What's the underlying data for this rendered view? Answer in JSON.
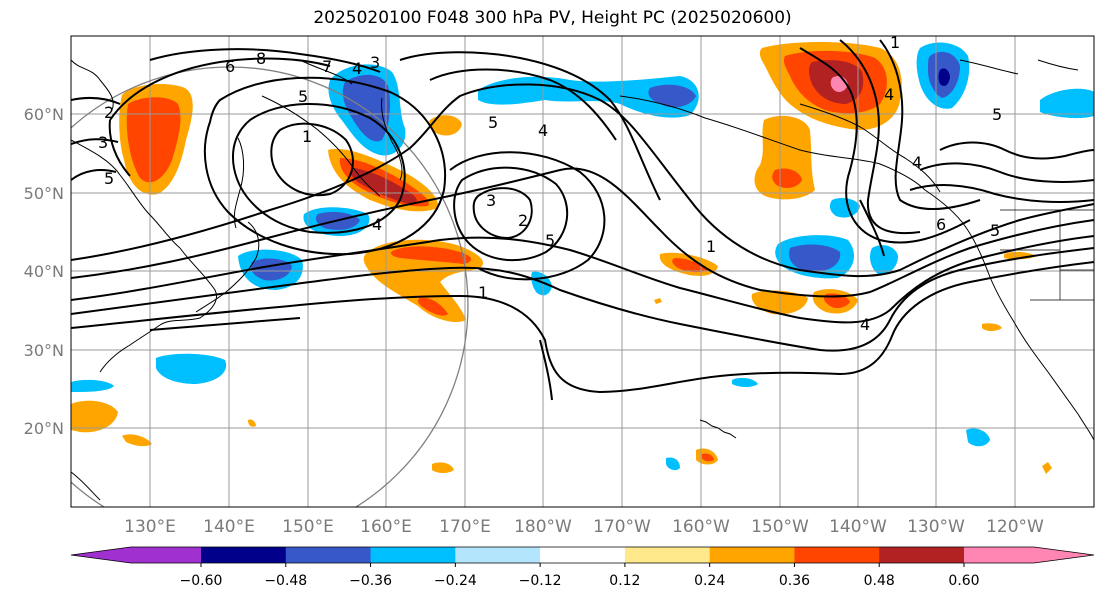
{
  "title": "2025020100 F048 300 hPa PV, Height PC (2025020600)",
  "lat_labels": [
    "60°N",
    "50°N",
    "40°N",
    "30°N",
    "20°N"
  ],
  "lon_labels": [
    "130°E",
    "140°E",
    "150°E",
    "160°E",
    "170°E",
    "180°W",
    "170°W",
    "160°W",
    "150°W",
    "140°W",
    "130°W",
    "120°W"
  ],
  "contour_labels": [
    "6",
    "8",
    "7",
    "4",
    "3",
    "5",
    "2",
    "3",
    "5",
    "1",
    "4",
    "5",
    "4",
    "3",
    "2",
    "5",
    "1",
    "1",
    "4",
    "6",
    "5",
    "5",
    "4",
    "1",
    "4"
  ],
  "colorbar": {
    "ticks": [
      "−0.60",
      "−0.48",
      "−0.36",
      "−0.24",
      "−0.12",
      "0.12",
      "0.24",
      "0.36",
      "0.48",
      "0.60"
    ],
    "colors": [
      "#a030d0",
      "#00008b",
      "#3758c8",
      "#00bfff",
      "#b3e5fc",
      "#ffffff",
      "#ffe98a",
      "#ffa500",
      "#ff4500",
      "#b22222",
      "#ff85b3"
    ]
  },
  "colors": {
    "neg_strong": "#3758c8",
    "neg_mid": "#00bfff",
    "neg_weak": "#b3e5fc",
    "pos_weak": "#ffe98a",
    "pos_mid": "#ffa500",
    "pos_strong": "#ff4500",
    "pos_max": "#b22222",
    "pos_peak": "#ff85b3",
    "neg_peak": "#00008b"
  }
}
